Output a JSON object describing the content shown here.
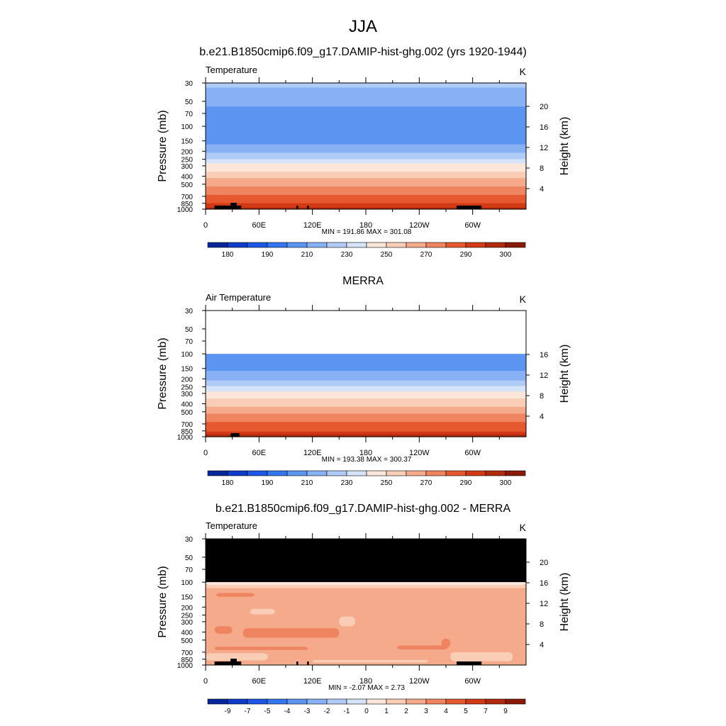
{
  "figure": {
    "title": "JJA"
  },
  "colors": {
    "model_levels": [
      175,
      180,
      185,
      190,
      200,
      210,
      220,
      230,
      240,
      250,
      260,
      270,
      280,
      290,
      295,
      300
    ],
    "diff_levels": [
      -11,
      -9,
      -8,
      -7,
      -6,
      -5,
      -4,
      -3,
      -2,
      -1,
      0,
      1,
      2,
      3,
      4,
      5,
      6,
      7,
      9
    ],
    "palette": [
      "#0a1f7a",
      "#06279c",
      "#0d3cc8",
      "#1c57e6",
      "#3476f0",
      "#5c94f2",
      "#87b1f4",
      "#b0ccf6",
      "#d5e4f8",
      "#fbe6d9",
      "#f9cdb6",
      "#f5ab8b",
      "#ef8560",
      "#e6582f",
      "#d23a15",
      "#b22a0c",
      "#8c1807",
      "#6e0c05"
    ]
  },
  "chart_data": [
    {
      "type": "heatmap",
      "title": "b.e21.B1850cmip6.f09_g17.DAMIP-hist-ghg.002 (yrs 1920-1944)",
      "left_label": "Temperature",
      "units": "K",
      "ylabel": "Pressure (mb)",
      "y2label": "Height (km)",
      "xticks": [
        "0",
        "60E",
        "120E",
        "180",
        "120W",
        "60W"
      ],
      "xtick_values": [
        0,
        60,
        120,
        180,
        240,
        300
      ],
      "xlim": [
        0,
        360
      ],
      "yticks": [
        "30",
        "50",
        "70",
        "100",
        "150",
        "200",
        "250",
        "300",
        "400",
        "500",
        "700",
        "850",
        "1000"
      ],
      "ytick_values": [
        30,
        50,
        70,
        100,
        150,
        200,
        250,
        300,
        400,
        500,
        700,
        850,
        1000
      ],
      "ylim": [
        1000,
        30
      ],
      "y2ticks": [
        "20",
        "16",
        "12",
        "8",
        "4"
      ],
      "y2tick_values": [
        20,
        16,
        12,
        8,
        4
      ],
      "minmax": "MIN = 191.86  MAX = 301.08",
      "colorbar_labels": [
        "180",
        "190",
        "210",
        "230",
        "250",
        "270",
        "290",
        "300"
      ],
      "profile_levels": [
        1000,
        850,
        700,
        500,
        300,
        200,
        150,
        100,
        70,
        50,
        30
      ],
      "profile_values": [
        300,
        290,
        282,
        268,
        244,
        218,
        208,
        200,
        206,
        212,
        222
      ],
      "terrain_lon": [
        {
          "from": 10,
          "to": 40
        },
        {
          "from": 28,
          "to": 35
        },
        {
          "from": 102,
          "to": 104
        },
        {
          "from": 114,
          "to": 116
        },
        {
          "from": 282,
          "to": 310
        }
      ],
      "levels_key": "model_levels"
    },
    {
      "type": "heatmap",
      "title": "MERRA",
      "left_label": "Air Temperature",
      "units": "K",
      "ylabel": "Pressure (mb)",
      "y2label": "Height (km)",
      "xticks": [
        "0",
        "60E",
        "120E",
        "180",
        "120W",
        "60W"
      ],
      "xtick_values": [
        0,
        60,
        120,
        180,
        240,
        300
      ],
      "xlim": [
        0,
        360
      ],
      "yticks": [
        "30",
        "50",
        "70",
        "100",
        "150",
        "200",
        "250",
        "300",
        "400",
        "500",
        "700",
        "850",
        "1000"
      ],
      "ytick_values": [
        30,
        50,
        70,
        100,
        150,
        200,
        250,
        300,
        400,
        500,
        700,
        850,
        1000
      ],
      "ylim": [
        1000,
        30
      ],
      "y2ticks": [
        "16",
        "12",
        "8",
        "4"
      ],
      "y2tick_values": [
        16,
        12,
        8,
        4
      ],
      "minmax": "MIN = 193.38  MAX = 300.37",
      "colorbar_labels": [
        "180",
        "190",
        "210",
        "230",
        "250",
        "270",
        "290",
        "300"
      ],
      "profile_levels": [
        1000,
        850,
        700,
        500,
        300,
        200,
        150,
        100
      ],
      "profile_values": [
        300,
        290,
        282,
        268,
        244,
        218,
        208,
        200
      ],
      "data_top": 100,
      "terrain_lon": [
        {
          "from": 28,
          "to": 38
        }
      ],
      "levels_key": "model_levels"
    },
    {
      "type": "heatmap",
      "title": "b.e21.B1850cmip6.f09_g17.DAMIP-hist-ghg.002 - MERRA",
      "left_label": "Temperature",
      "units": "K",
      "ylabel": "Pressure (mb)",
      "y2label": "Height (km)",
      "xticks": [
        "0",
        "60E",
        "120E",
        "180",
        "120W",
        "60W"
      ],
      "xtick_values": [
        0,
        60,
        120,
        180,
        240,
        300
      ],
      "xlim": [
        0,
        360
      ],
      "yticks": [
        "30",
        "50",
        "70",
        "100",
        "150",
        "200",
        "250",
        "300",
        "400",
        "500",
        "700",
        "850",
        "1000"
      ],
      "ytick_values": [
        30,
        50,
        70,
        100,
        150,
        200,
        250,
        300,
        400,
        500,
        700,
        850,
        1000
      ],
      "ylim": [
        1000,
        30
      ],
      "y2ticks": [
        "20",
        "16",
        "12",
        "8",
        "4"
      ],
      "y2tick_values": [
        20,
        16,
        12,
        8,
        4
      ],
      "minmax": "MIN =  -2.07  MAX =   2.73",
      "colorbar_labels": [
        "-9",
        "-7",
        "-5",
        "-4",
        "-3",
        "-2",
        "-1",
        "0",
        "1",
        "2",
        "3",
        "4",
        "5",
        "7",
        "9"
      ],
      "background_value": 0.5,
      "missing_above": 100,
      "diff_patches": [
        {
          "lon0": 0,
          "lon1": 360,
          "p0": 100,
          "p1": 108,
          "value": -1.5
        },
        {
          "lon0": 0,
          "lon1": 360,
          "p0": 108,
          "p1": 118,
          "value": -0.5
        },
        {
          "lon0": 12,
          "lon1": 55,
          "p0": 135,
          "p1": 150,
          "value": 1.5
        },
        {
          "lon0": 50,
          "lon1": 78,
          "p0": 210,
          "p1": 245,
          "value": -0.5
        },
        {
          "lon0": 10,
          "lon1": 30,
          "p0": 340,
          "p1": 420,
          "value": 1.5
        },
        {
          "lon0": 42,
          "lon1": 150,
          "p0": 360,
          "p1": 470,
          "value": 1.5
        },
        {
          "lon0": 150,
          "lon1": 168,
          "p0": 260,
          "p1": 340,
          "value": -0.5
        },
        {
          "lon0": 10,
          "lon1": 115,
          "p0": 600,
          "p1": 660,
          "value": 1.5
        },
        {
          "lon0": 215,
          "lon1": 272,
          "p0": 580,
          "p1": 650,
          "value": 1.5
        },
        {
          "lon0": 265,
          "lon1": 275,
          "p0": 480,
          "p1": 620,
          "value": 1.5
        },
        {
          "lon0": 0,
          "lon1": 70,
          "p0": 720,
          "p1": 880,
          "value": -0.5
        },
        {
          "lon0": 275,
          "lon1": 345,
          "p0": 700,
          "p1": 900,
          "value": -0.5
        },
        {
          "lon0": 120,
          "lon1": 250,
          "p0": 870,
          "p1": 930,
          "value": -0.5
        }
      ],
      "terrain_lon": [
        {
          "from": 10,
          "to": 40
        },
        {
          "from": 28,
          "to": 35
        },
        {
          "from": 102,
          "to": 104
        },
        {
          "from": 114,
          "to": 116
        },
        {
          "from": 282,
          "to": 310
        }
      ],
      "levels_key": "diff_levels"
    }
  ]
}
